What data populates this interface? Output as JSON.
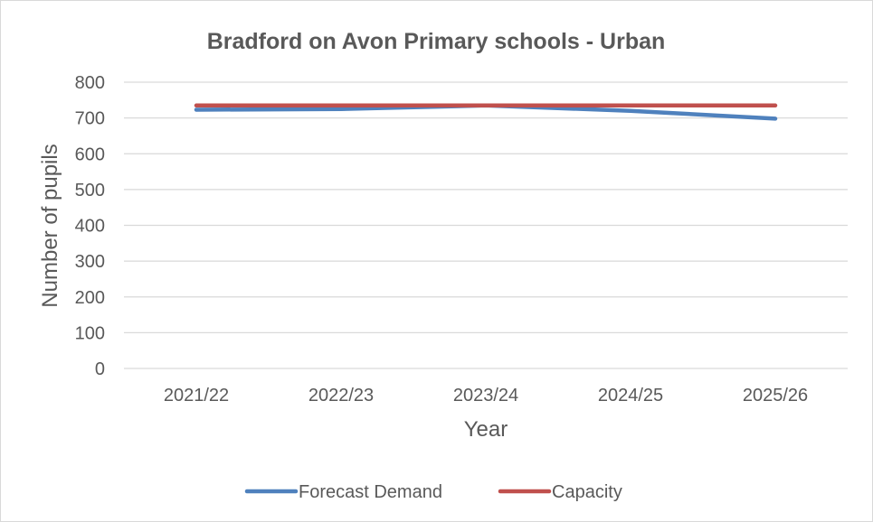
{
  "chart_data": {
    "type": "line",
    "title": "Bradford on Avon Primary schools - Urban",
    "xlabel": "Year",
    "ylabel": "Number of pupils",
    "categories": [
      "2021/22",
      "2022/23",
      "2023/24",
      "2024/25",
      "2025/26"
    ],
    "ylim": [
      0,
      800
    ],
    "yticks": [
      0,
      100,
      200,
      300,
      400,
      500,
      600,
      700,
      800
    ],
    "grid": true,
    "legend_position": "bottom",
    "series": [
      {
        "name": "Forecast Demand",
        "color": "#4f81bd",
        "values": [
          723,
          725,
          735,
          720,
          698
        ]
      },
      {
        "name": "Capacity",
        "color": "#c0504d",
        "values": [
          735,
          735,
          735,
          735,
          735
        ]
      }
    ]
  }
}
